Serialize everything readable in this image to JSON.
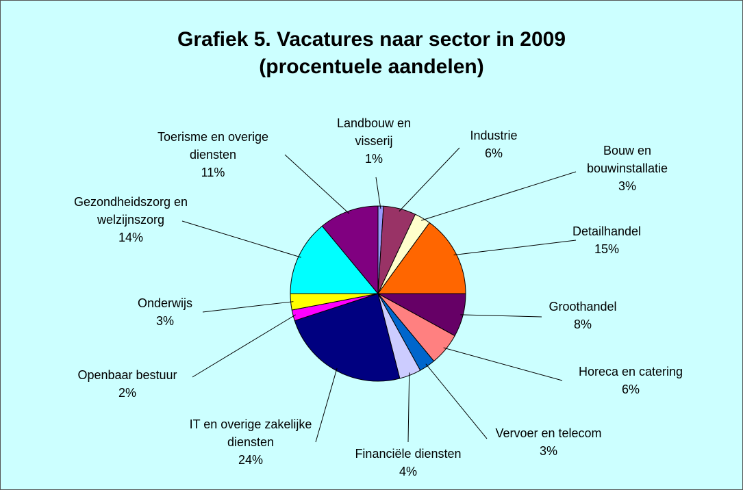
{
  "chart_data": {
    "type": "pie",
    "title": "Grafiek 5. Vacatures naar sector in 2009",
    "subtitle": "(procentuele aandelen)",
    "categories": [
      "Landbouw en visserij",
      "Industrie",
      "Bouw en bouwinstallatie",
      "Detailhandel",
      "Groothandel",
      "Horeca en catering",
      "Vervoer en telecom",
      "Financiële diensten",
      "IT en overige zakelijke diensten",
      "Openbaar bestuur",
      "Onderwijs",
      "Gezondheidszorg en welzijnszorg",
      "Toerisme en overige diensten"
    ],
    "values": [
      1,
      6,
      3,
      15,
      8,
      6,
      3,
      4,
      24,
      2,
      3,
      14,
      11
    ],
    "value_labels": [
      "1%",
      "6%",
      "3%",
      "15%",
      "8%",
      "6%",
      "3%",
      "4%",
      "24%",
      "2%",
      "3%",
      "14%",
      "11%"
    ],
    "colors": [
      "#9999ff",
      "#993366",
      "#ffffcc",
      "#ff6600",
      "#660066",
      "#ff8080",
      "#0066cc",
      "#ccccff",
      "#000080",
      "#ff00ff",
      "#ffff00",
      "#00ffff",
      "#800080"
    ]
  }
}
